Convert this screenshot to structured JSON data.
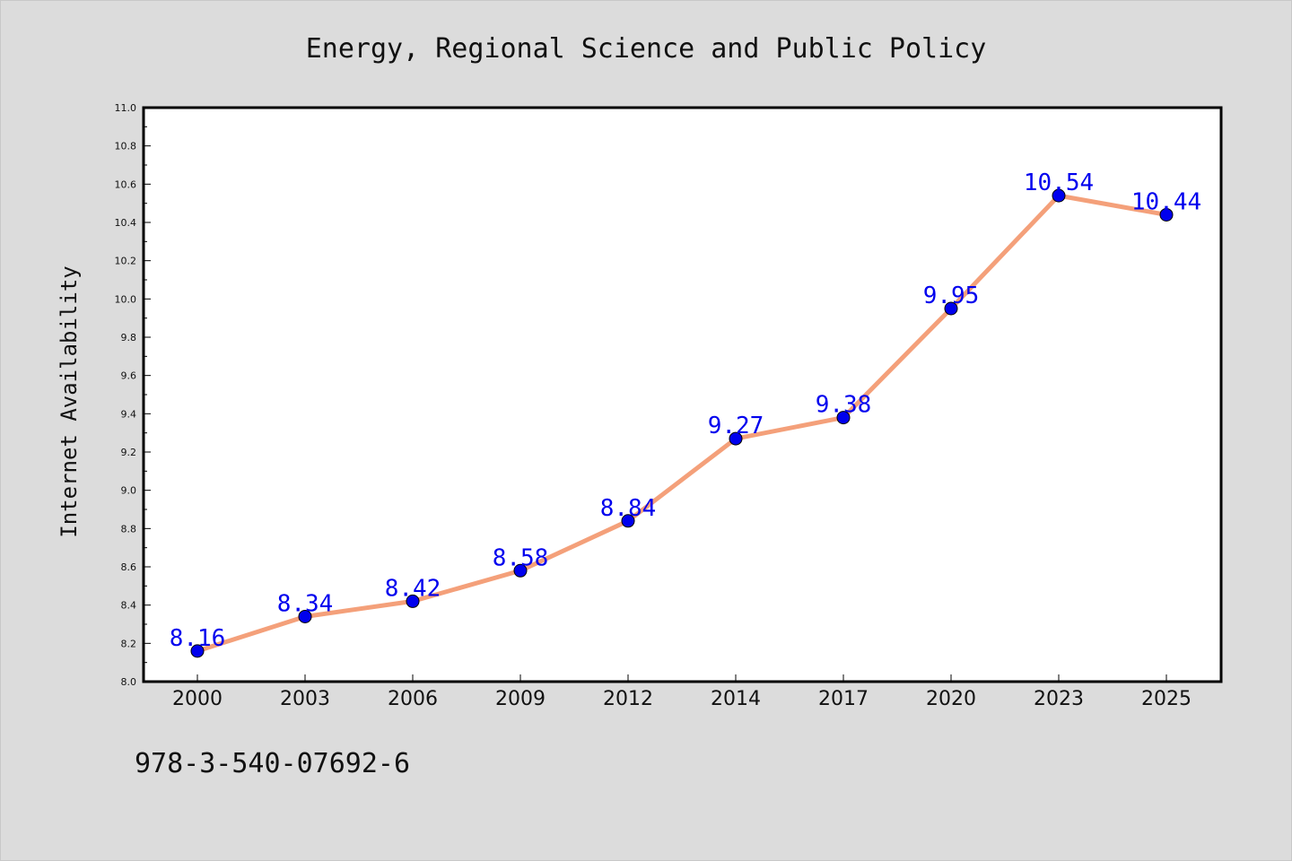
{
  "isbn": "978-3-540-07692-6",
  "chart_data": {
    "type": "line",
    "title": "Energy, Regional Science and Public Policy",
    "xlabel": "",
    "ylabel": "Internet Availability",
    "categories": [
      "2000",
      "2003",
      "2006",
      "2009",
      "2012",
      "2014",
      "2017",
      "2020",
      "2023",
      "2025"
    ],
    "series": [
      {
        "values": [
          8.16,
          8.34,
          8.42,
          8.58,
          8.84,
          9.27,
          9.38,
          9.95,
          10.54,
          10.44
        ],
        "labels": [
          "8.16",
          "8.34",
          "8.42",
          "8.58",
          "8.84",
          "9.27",
          "9.38",
          "9.95",
          "10.54",
          "10.44"
        ]
      }
    ],
    "ylim": [
      8.0,
      11.0
    ],
    "yticks": [
      "8.0",
      "8.2",
      "8.4",
      "8.6",
      "8.8",
      "9.0",
      "9.2",
      "9.4",
      "9.6",
      "9.8",
      "10.0",
      "10.2",
      "10.4",
      "10.6",
      "10.8",
      "11.0"
    ],
    "grid": false,
    "legend": "none",
    "colors": {
      "line": "#f4a07a",
      "marker": "#0000ee",
      "data_label": "#0000ee",
      "plot_bg": "#ffffff",
      "page_bg": "#dcdcdc"
    }
  }
}
